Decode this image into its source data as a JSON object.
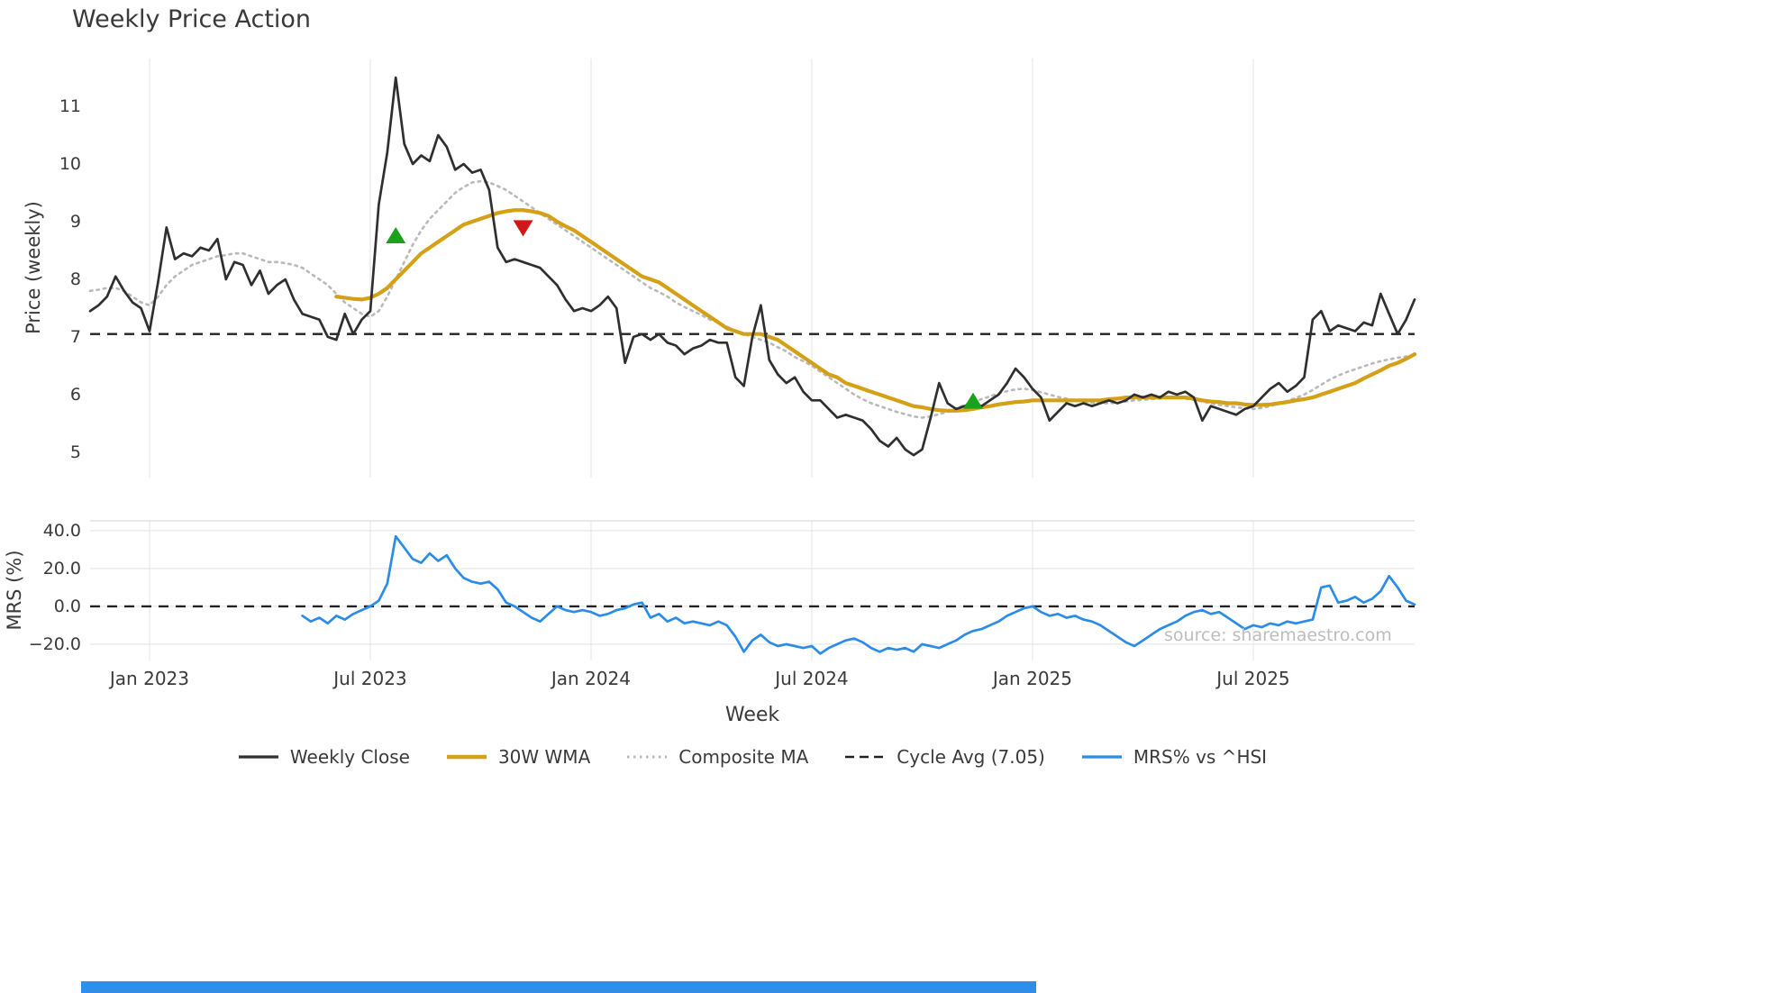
{
  "title": "Weekly Price Action",
  "watermark": "source: sharemaestro.com",
  "bottom_bar": {
    "color": "#2f8fe8"
  },
  "legend": [
    {
      "label": "Weekly Close",
      "color": "#2f2f2f",
      "style": "solid"
    },
    {
      "label": "30W WMA",
      "color": "#d4a017",
      "style": "solid-thick"
    },
    {
      "label": "Composite MA",
      "color": "#b9b9b9",
      "style": "dotted"
    },
    {
      "label": "Cycle Avg (7.05)",
      "color": "#222222",
      "style": "dashed"
    },
    {
      "label": "MRS% vs ^HSI",
      "color": "#2b8ce8",
      "style": "solid"
    }
  ],
  "chart_data": {
    "type": "line",
    "title": "Weekly Price Action",
    "x_label": "Week",
    "x_tick_labels": [
      "Jan 2023",
      "Jul 2023",
      "Jan 2024",
      "Jul 2024",
      "Jan 2025",
      "Jul 2025"
    ],
    "x_tick_weeks": [
      7,
      33,
      59,
      85,
      111,
      137
    ],
    "weeks_total": 157,
    "grid": "on",
    "legend_position": "bottom-center",
    "panels": [
      {
        "name": "price",
        "y_label": "Price (weekly)",
        "y_ticks": [
          11,
          10,
          9,
          8,
          7,
          6,
          5
        ],
        "y_range": [
          4.56,
          11.83
        ],
        "hline": {
          "label": "Cycle Avg (7.05)",
          "value": 7.05,
          "color": "#222222",
          "style": "dashed"
        },
        "markers": [
          {
            "shape": "triangle-up",
            "color": "#1aa31a",
            "week": 36,
            "price": 8.75
          },
          {
            "shape": "triangle-down",
            "color": "#d01818",
            "week": 51,
            "price": 8.9
          },
          {
            "shape": "triangle-up",
            "color": "#1aa31a",
            "week": 104,
            "price": 5.88
          }
        ],
        "series": [
          {
            "name": "Weekly Close",
            "color": "#2f2f2f",
            "style": "solid",
            "values": [
              7.45,
              7.55,
              7.7,
              8.05,
              7.8,
              7.6,
              7.5,
              7.1,
              7.95,
              8.9,
              8.35,
              8.45,
              8.4,
              8.55,
              8.5,
              8.7,
              8.0,
              8.3,
              8.25,
              7.9,
              8.15,
              7.75,
              7.9,
              8.0,
              7.65,
              7.4,
              7.35,
              7.3,
              7.0,
              6.95,
              7.4,
              7.05,
              7.3,
              7.45,
              9.3,
              10.2,
              11.5,
              10.35,
              10.0,
              10.15,
              10.05,
              10.5,
              10.3,
              9.9,
              10.0,
              9.85,
              9.9,
              9.55,
              8.55,
              8.3,
              8.35,
              8.3,
              8.25,
              8.2,
              8.05,
              7.9,
              7.65,
              7.45,
              7.5,
              7.45,
              7.55,
              7.7,
              7.5,
              6.55,
              7.0,
              7.05,
              6.95,
              7.05,
              6.9,
              6.85,
              6.7,
              6.8,
              6.85,
              6.95,
              6.9,
              6.9,
              6.3,
              6.15,
              7.0,
              7.55,
              6.6,
              6.35,
              6.2,
              6.3,
              6.05,
              5.9,
              5.9,
              5.75,
              5.6,
              5.65,
              5.6,
              5.55,
              5.4,
              5.2,
              5.1,
              5.25,
              5.05,
              4.95,
              5.05,
              5.6,
              6.2,
              5.85,
              5.75,
              5.8,
              5.85,
              5.8,
              5.9,
              6.0,
              6.2,
              6.45,
              6.3,
              6.1,
              5.95,
              5.55,
              5.7,
              5.85,
              5.8,
              5.85,
              5.8,
              5.85,
              5.9,
              5.85,
              5.9,
              6.0,
              5.95,
              6.0,
              5.95,
              6.05,
              6.0,
              6.05,
              5.95,
              5.55,
              5.8,
              5.75,
              5.7,
              5.65,
              5.75,
              5.8,
              5.95,
              6.1,
              6.2,
              6.05,
              6.15,
              6.3,
              7.3,
              7.45,
              7.1,
              7.2,
              7.15,
              7.1,
              7.25,
              7.2,
              7.75,
              7.4,
              7.05,
              7.3,
              7.65
            ]
          },
          {
            "name": "30W WMA",
            "color": "#d4a017",
            "style": "solid-thick",
            "values": [
              null,
              null,
              null,
              null,
              null,
              null,
              null,
              null,
              null,
              null,
              null,
              null,
              null,
              null,
              null,
              null,
              null,
              null,
              null,
              null,
              null,
              null,
              null,
              null,
              null,
              null,
              null,
              null,
              null,
              7.7,
              7.68,
              7.66,
              7.65,
              7.68,
              7.75,
              7.85,
              8.0,
              8.15,
              8.3,
              8.45,
              8.55,
              8.65,
              8.75,
              8.85,
              8.95,
              9.0,
              9.05,
              9.1,
              9.15,
              9.18,
              9.2,
              9.2,
              9.18,
              9.15,
              9.1,
              9.0,
              8.92,
              8.85,
              8.75,
              8.65,
              8.55,
              8.45,
              8.35,
              8.25,
              8.15,
              8.05,
              8.0,
              7.95,
              7.85,
              7.75,
              7.65,
              7.55,
              7.45,
              7.35,
              7.25,
              7.15,
              7.1,
              7.05,
              7.05,
              7.05,
              7.0,
              6.95,
              6.85,
              6.75,
              6.65,
              6.55,
              6.45,
              6.35,
              6.3,
              6.2,
              6.15,
              6.1,
              6.05,
              6.0,
              5.95,
              5.9,
              5.85,
              5.8,
              5.78,
              5.75,
              5.73,
              5.72,
              5.72,
              5.73,
              5.75,
              5.78,
              5.8,
              5.83,
              5.85,
              5.87,
              5.88,
              5.9,
              5.9,
              5.9,
              5.9,
              5.9,
              5.9,
              5.9,
              5.9,
              5.9,
              5.92,
              5.93,
              5.95,
              5.95,
              5.95,
              5.95,
              5.95,
              5.95,
              5.95,
              5.95,
              5.93,
              5.9,
              5.88,
              5.87,
              5.85,
              5.85,
              5.83,
              5.82,
              5.82,
              5.83,
              5.85,
              5.87,
              5.9,
              5.92,
              5.95,
              6.0,
              6.05,
              6.1,
              6.15,
              6.2,
              6.28,
              6.35,
              6.42,
              6.5,
              6.55,
              6.62,
              6.7
            ]
          },
          {
            "name": "Composite MA",
            "color": "#b9b9b9",
            "style": "dotted",
            "values": [
              7.8,
              7.82,
              7.85,
              7.85,
              7.8,
              7.7,
              7.6,
              7.55,
              7.7,
              7.9,
              8.05,
              8.15,
              8.25,
              8.3,
              8.35,
              8.4,
              8.42,
              8.45,
              8.45,
              8.4,
              8.35,
              8.3,
              8.3,
              8.28,
              8.25,
              8.2,
              8.1,
              8.0,
              7.9,
              7.75,
              7.6,
              7.5,
              7.4,
              7.35,
              7.45,
              7.7,
              8.0,
              8.3,
              8.6,
              8.85,
              9.05,
              9.2,
              9.35,
              9.5,
              9.6,
              9.68,
              9.7,
              9.68,
              9.62,
              9.55,
              9.45,
              9.35,
              9.25,
              9.15,
              9.05,
              8.95,
              8.85,
              8.75,
              8.65,
              8.55,
              8.45,
              8.35,
              8.25,
              8.15,
              8.05,
              7.95,
              7.85,
              7.78,
              7.7,
              7.6,
              7.52,
              7.45,
              7.38,
              7.3,
              7.25,
              7.18,
              7.1,
              7.05,
              7.0,
              6.95,
              6.9,
              6.82,
              6.75,
              6.65,
              6.58,
              6.5,
              6.4,
              6.3,
              6.2,
              6.1,
              6.0,
              5.92,
              5.85,
              5.8,
              5.75,
              5.7,
              5.66,
              5.62,
              5.6,
              5.62,
              5.66,
              5.7,
              5.76,
              5.82,
              5.88,
              5.92,
              5.97,
              6.02,
              6.06,
              6.09,
              6.1,
              6.08,
              6.04,
              6.0,
              5.96,
              5.93,
              5.9,
              5.88,
              5.86,
              5.85,
              5.85,
              5.86,
              5.88,
              5.9,
              5.91,
              5.92,
              5.93,
              5.94,
              5.94,
              5.93,
              5.91,
              5.88,
              5.85,
              5.82,
              5.8,
              5.78,
              5.76,
              5.75,
              5.77,
              5.8,
              5.84,
              5.89,
              5.94,
              6.0,
              6.08,
              6.17,
              6.26,
              6.33,
              6.39,
              6.44,
              6.49,
              6.54,
              6.58,
              6.61,
              6.64,
              6.66,
              6.68
            ]
          }
        ]
      },
      {
        "name": "mrs",
        "y_label": "MRS (%)",
        "y_ticks": [
          40,
          20,
          0,
          -20
        ],
        "y_tick_labels": [
          "40.0",
          "20.0",
          "0.0",
          "−20.0"
        ],
        "y_range": [
          -28.6,
          45.2
        ],
        "hline": {
          "label": "Zero line",
          "value": 0,
          "color": "#222222",
          "style": "dashed"
        },
        "markers": [],
        "series": [
          {
            "name": "MRS% vs ^HSI",
            "color": "#2b8ce8",
            "style": "solid",
            "values": [
              null,
              null,
              null,
              null,
              null,
              null,
              null,
              null,
              null,
              null,
              null,
              null,
              null,
              null,
              null,
              null,
              null,
              null,
              null,
              null,
              null,
              null,
              null,
              null,
              null,
              -5,
              -8,
              -6,
              -9,
              -5,
              -7,
              -4,
              -2,
              0,
              3,
              12,
              37,
              31,
              25,
              23,
              28,
              24,
              27,
              20,
              15,
              13,
              12,
              13,
              9,
              2,
              0,
              -3,
              -6,
              -8,
              -4,
              0,
              -2,
              -3,
              -2,
              -3,
              -5,
              -4,
              -2,
              -1,
              1,
              2,
              -6,
              -4,
              -8,
              -6,
              -9,
              -8,
              -9,
              -10,
              -8,
              -10,
              -16,
              -24,
              -18,
              -15,
              -19,
              -21,
              -20,
              -21,
              -22,
              -21,
              -25,
              -22,
              -20,
              -18,
              -17,
              -19,
              -22,
              -24,
              -22,
              -23,
              -22,
              -24,
              -20,
              -21,
              -22,
              -20,
              -18,
              -15,
              -13,
              -12,
              -10,
              -8,
              -5,
              -3,
              -1,
              0,
              -3,
              -5,
              -4,
              -6,
              -5,
              -7,
              -8,
              -10,
              -13,
              -16,
              -19,
              -21,
              -18,
              -15,
              -12,
              -10,
              -8,
              -5,
              -3,
              -2,
              -4,
              -3,
              -6,
              -9,
              -12,
              -10,
              -11,
              -9,
              -10,
              -8,
              -9,
              -8,
              -7,
              10,
              11,
              2,
              3,
              5,
              2,
              4,
              8,
              16,
              10,
              3,
              1
            ]
          }
        ]
      }
    ]
  }
}
